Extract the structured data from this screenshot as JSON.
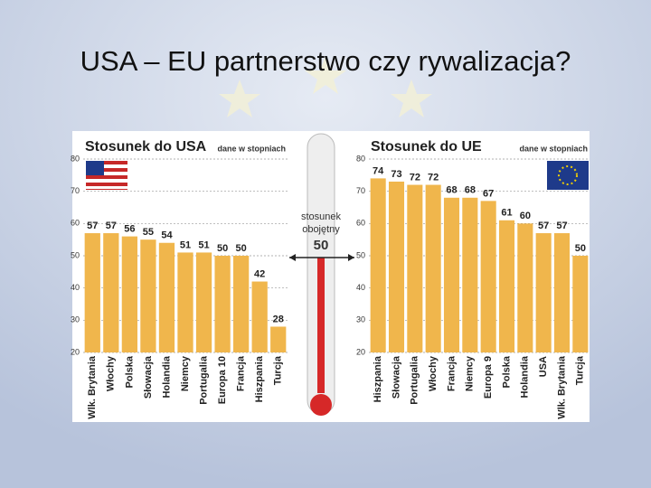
{
  "title": "USA – EU partnerstwo czy rywalizacja?",
  "chart_data": [
    {
      "type": "bar",
      "title": "Stosunek do USA",
      "subtitle": "dane w stopniach",
      "color": "#f0b64c",
      "categories": [
        "Wlk. Brytania",
        "Włochy",
        "Polska",
        "Słowacja",
        "Holandia",
        "Niemcy",
        "Portugalia",
        "Europa 10",
        "Francja",
        "Hiszpania",
        "Turcja"
      ],
      "values": [
        57,
        57,
        56,
        55,
        54,
        51,
        51,
        50,
        50,
        42,
        28
      ],
      "ylim": [
        20,
        80
      ],
      "yticks": [
        20,
        30,
        40,
        50,
        60,
        70,
        80
      ],
      "grid": true
    },
    {
      "type": "bar",
      "title": "Stosunek do UE",
      "subtitle": "dane w stopniach",
      "color": "#f0b64c",
      "categories": [
        "Hiszpania",
        "Słowacja",
        "Portugalia",
        "Włochy",
        "Francja",
        "Niemcy",
        "Europa 9",
        "Polska",
        "Holandia",
        "USA",
        "Wlk. Brytania",
        "Turcja"
      ],
      "values": [
        74,
        73,
        72,
        72,
        68,
        68,
        67,
        61,
        60,
        57,
        57,
        50
      ],
      "ylim": [
        20,
        80
      ],
      "yticks": [
        20,
        30,
        40,
        50,
        60,
        70,
        80
      ],
      "grid": true
    }
  ],
  "thermometer": {
    "label_1": "stosunek",
    "label_2": "obojętny",
    "value": 50
  }
}
